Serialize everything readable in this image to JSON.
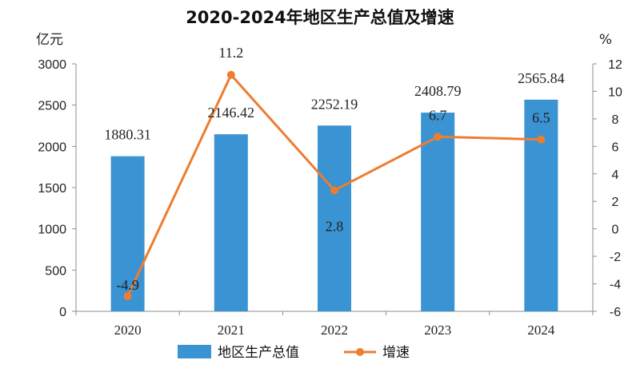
{
  "chart_data": {
    "type": "bar",
    "title": "2020-2024年地区生产总值及增速",
    "categories": [
      "2020",
      "2021",
      "2022",
      "2023",
      "2024"
    ],
    "series": [
      {
        "name": "地区生产总值",
        "type": "bar",
        "axis": "left",
        "color": "#3a93d2",
        "values": [
          1880.31,
          2146.42,
          2252.19,
          2408.79,
          2565.84
        ],
        "labels": [
          "1880.31",
          "2146.42",
          "2252.19",
          "2408.79",
          "2565.84"
        ]
      },
      {
        "name": "增速",
        "type": "line",
        "axis": "right",
        "color": "#ed7d31",
        "values": [
          -4.9,
          11.2,
          2.8,
          6.7,
          6.5
        ],
        "labels": [
          "-4.9",
          "11.2",
          "2.8",
          "6.7",
          "6.5"
        ]
      }
    ],
    "y_left": {
      "unit": "亿元",
      "ylim": [
        0,
        3000
      ],
      "ticks": [
        "0",
        "500",
        "1000",
        "1500",
        "2000",
        "2500",
        "3000"
      ]
    },
    "y_right": {
      "unit": "%",
      "ylim": [
        -6,
        12
      ],
      "ticks": [
        "-6",
        "-4",
        "-2",
        "0",
        "2",
        "4",
        "6",
        "8",
        "10",
        "12"
      ]
    },
    "grid": false,
    "legend": "bottom"
  }
}
